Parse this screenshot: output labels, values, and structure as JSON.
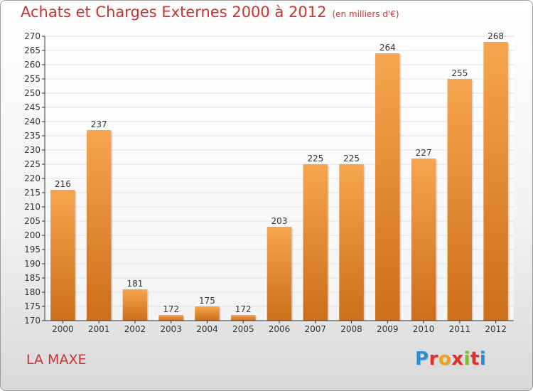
{
  "header": {
    "title": "Achats et Charges Externes 2000 à 2012",
    "subtitle": "(en milliers d'€)"
  },
  "footer": {
    "commune": "LA MAXE",
    "logo": "Proxiti",
    "logo_colors": [
      "#2a8fd0",
      "#e0302a",
      "#f0a020",
      "#e0302a",
      "#7cbf2a",
      "#e0302a",
      "#2a8fd0"
    ]
  },
  "colors": {
    "bar_top": "#f7a550",
    "bar_bottom": "#cc6e1a",
    "grid": "#e2e2e2",
    "axis": "#333333",
    "text": "#333333",
    "accent": "#d03030"
  },
  "chart_data": {
    "type": "bar",
    "title": "Achats et Charges Externes 2000 à 2012",
    "subtitle": "(en milliers d'€)",
    "categories": [
      "2000",
      "2001",
      "2002",
      "2003",
      "2004",
      "2005",
      "2006",
      "2007",
      "2008",
      "2009",
      "2010",
      "2011",
      "2012"
    ],
    "values": [
      216,
      237,
      181,
      172,
      175,
      172,
      203,
      225,
      225,
      264,
      227,
      255,
      268
    ],
    "ylim": [
      170,
      270
    ],
    "ytick_step": 5,
    "grid": true,
    "data_labels": true
  }
}
